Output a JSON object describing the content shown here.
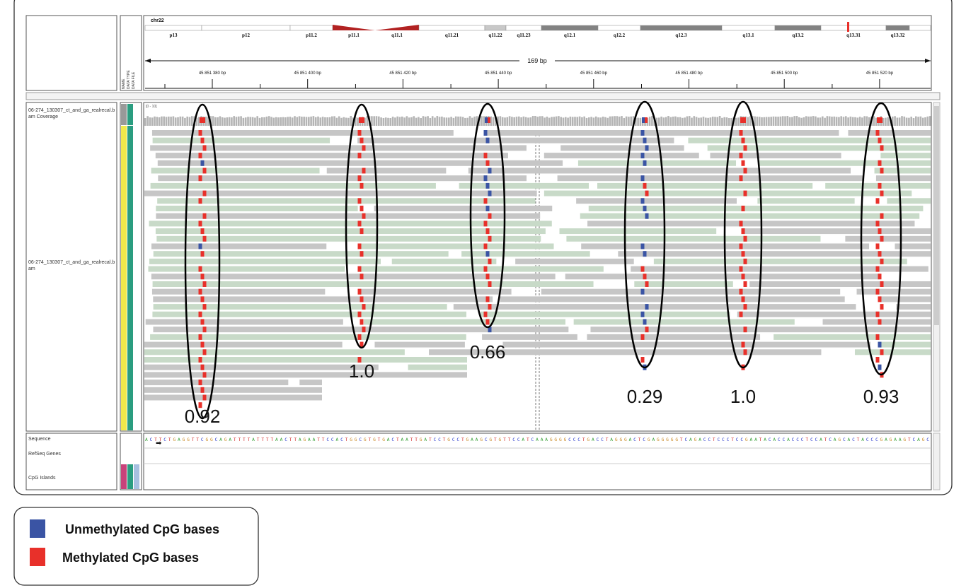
{
  "header": {
    "chromosome": "chr22",
    "cytobands": [
      {
        "label": "p13",
        "start": 205,
        "end": 285,
        "color": "#ffffff"
      },
      {
        "label": "p12",
        "start": 285,
        "end": 410,
        "color": "#ffffff"
      },
      {
        "label": "p11.2",
        "start": 410,
        "end": 470,
        "color": "#ffffff"
      },
      {
        "label": "p11.1",
        "start": 470,
        "end": 530,
        "color": "#b22222"
      },
      {
        "label": "q11.1",
        "start": 530,
        "end": 592,
        "color": "#b22222"
      },
      {
        "label": "q11.21",
        "start": 592,
        "end": 685,
        "color": "#ffffff"
      },
      {
        "label": "q11.22",
        "start": 685,
        "end": 715,
        "color": "#c8c8c8"
      },
      {
        "label": "q11.23",
        "start": 715,
        "end": 765,
        "color": "#ffffff"
      },
      {
        "label": "q12.1",
        "start": 765,
        "end": 845,
        "color": "#828282"
      },
      {
        "label": "q12.2",
        "start": 845,
        "end": 905,
        "color": "#ffffff"
      },
      {
        "label": "q12.3",
        "start": 905,
        "end": 1020,
        "color": "#828282"
      },
      {
        "label": "q13.1",
        "start": 1020,
        "end": 1095,
        "color": "#ffffff"
      },
      {
        "label": "q13.2",
        "start": 1095,
        "end": 1160,
        "color": "#828282"
      },
      {
        "label": "q13.31",
        "start": 1160,
        "end": 1252,
        "color": "#ffffff"
      },
      {
        "label": "q13.32",
        "start": 1252,
        "end": 1285,
        "color": "#828282"
      }
    ],
    "span": "169 bp",
    "positions": [
      "45 851 380 bp",
      "45 851 400 bp",
      "45 851 420 bp",
      "45 851 440 bp",
      "45 851 460 bp",
      "45 851 480 bp",
      "45 851 500 bp",
      "45 851 520 bp"
    ],
    "columns": [
      "NAME",
      "DATA TYPE",
      "DATA FILE"
    ]
  },
  "tracks": {
    "coverage": {
      "name": "06-274_130307_ct_and_ga_realrecal.bam Coverage",
      "range": "[0 - 10]"
    },
    "alignments": {
      "name": "06-274_130307_ct_and_ga_realrecal.bam"
    },
    "sequence": {
      "name": "Sequence",
      "bases": "ACTTCTGAGGTTCGGCAGATTTTATTTTAACTTAGAATTCCACTGGCGTGTGACTAATTGATCCTGCCTGAAGCGTGTTCCATCAAAGGGGCCCTGACCTAGGGACTCGAGGGGGTCAGACCTCCCTCCGAATACACCACCCTCCATCAGCACTACCCGAGAAGTCAGC"
    },
    "refseq": {
      "name": "RefSeq Genes"
    },
    "cpg": {
      "name": "CpG Islands"
    }
  },
  "annotations": [
    "0.92",
    "1.0",
    "0.66",
    "0.29",
    "1.0",
    "0.93"
  ],
  "legend": [
    {
      "label": "Unmethylated CpG bases",
      "color": "#3a54a4"
    },
    {
      "label": "Methylated CpG bases",
      "color": "#e8302a"
    }
  ]
}
